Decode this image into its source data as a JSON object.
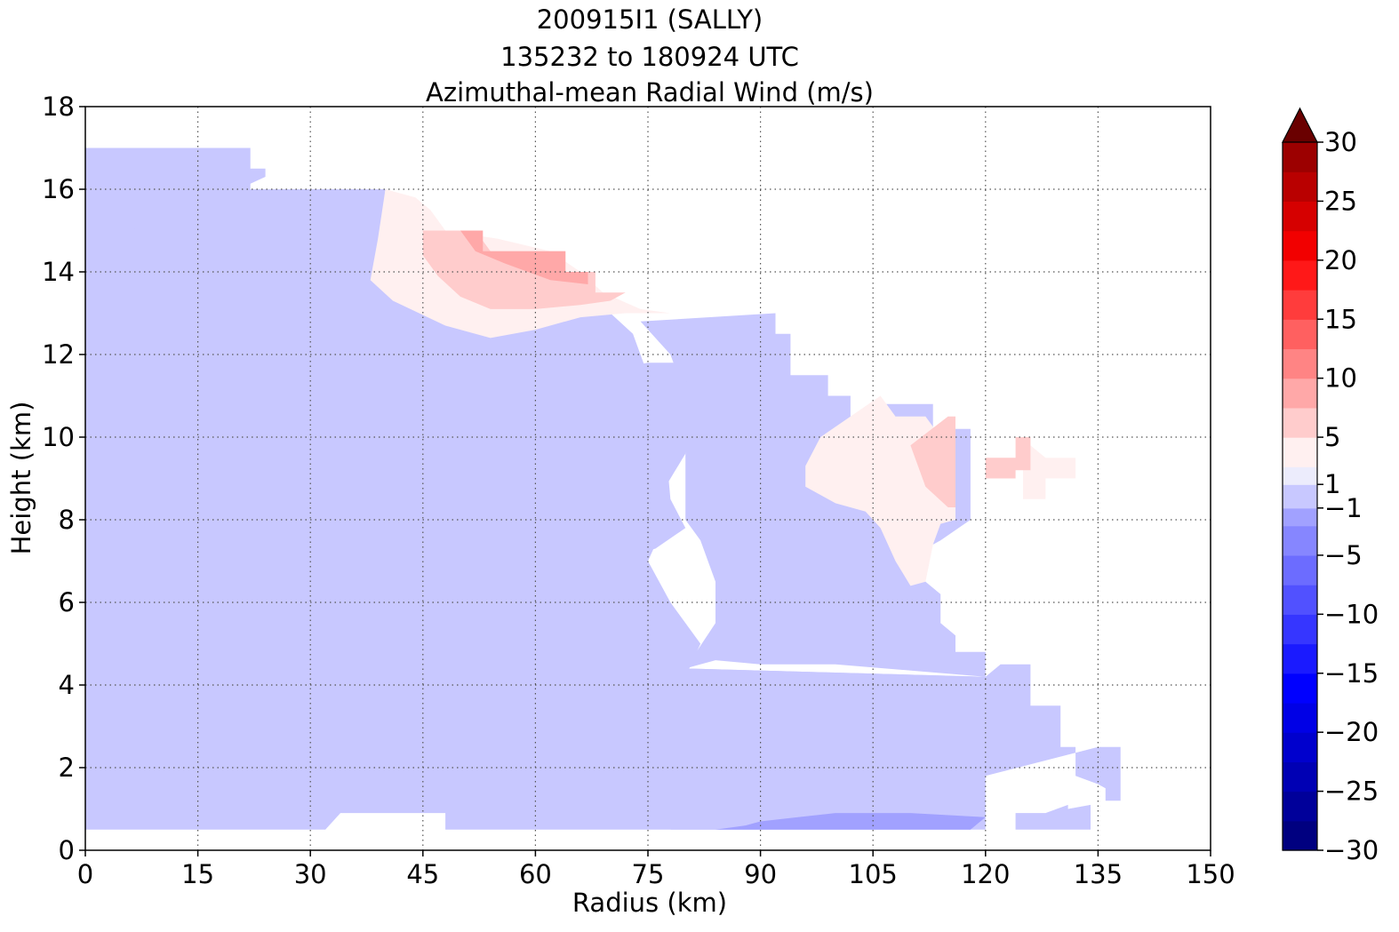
{
  "chart_data": {
    "type": "heatmap",
    "title_lines": [
      "200915I1 (SALLY)",
      "135232 to 180924 UTC",
      "Azimuthal-mean Radial Wind (m/s)"
    ],
    "xlabel": "Radius (km)",
    "ylabel": "Height (km)",
    "xlim": [
      0,
      150
    ],
    "ylim": [
      0,
      18
    ],
    "xticks": [
      0,
      15,
      30,
      45,
      60,
      75,
      90,
      105,
      120,
      135,
      150
    ],
    "yticks": [
      0,
      2,
      4,
      6,
      8,
      10,
      12,
      14,
      16,
      18
    ],
    "grid": true,
    "colorbar": {
      "ticks": [
        -30,
        -25,
        -20,
        -15,
        -10,
        -5,
        -1,
        1,
        5,
        10,
        15,
        20,
        25,
        30
      ],
      "tick_labels": [
        "−30",
        "−25",
        "−20",
        "−15",
        "−10",
        "−5",
        "−1",
        "1",
        "5",
        "10",
        "15",
        "20",
        "25",
        "30"
      ],
      "levels": [
        -30,
        -27.5,
        -25,
        -22.5,
        -20,
        -17.5,
        -15,
        -12.5,
        -10,
        -7.5,
        -5,
        -2.5,
        -1,
        1,
        2.5,
        5,
        7.5,
        10,
        12.5,
        15,
        17.5,
        20,
        22.5,
        25,
        27.5,
        30
      ],
      "colors": [
        "#000080",
        "#00009a",
        "#0000b4",
        "#0000cd",
        "#0000e6",
        "#0000ff",
        "#1a1aff",
        "#3636ff",
        "#5151ff",
        "#6c6cff",
        "#8686ff",
        "#a1a1ff",
        "#c8c8ff",
        "#ececfc",
        "#fff0f0",
        "#ffcccc",
        "#ffa8a8",
        "#ff8484",
        "#ff6060",
        "#ff3c3c",
        "#ff1818",
        "#f20000",
        "#d60000",
        "#b90000",
        "#9c0000",
        "#800000"
      ],
      "extend": "max",
      "extend_color": "#6a0000"
    },
    "regions": [
      {
        "value": 0.5,
        "points": [
          [
            0,
            0.5
          ],
          [
            32,
            0.5
          ],
          [
            34,
            0.9
          ],
          [
            48,
            0.9
          ],
          [
            48,
            0.5
          ],
          [
            120,
            0.5
          ],
          [
            120,
            4.2
          ],
          [
            80,
            4.4
          ],
          [
            75,
            4.9
          ],
          [
            70,
            4.9
          ],
          [
            68,
            5.5
          ],
          [
            67,
            6.5
          ],
          [
            70,
            7
          ],
          [
            76,
            7.3
          ],
          [
            80,
            7.8
          ],
          [
            78,
            8.5
          ],
          [
            77,
            10.5
          ],
          [
            73,
            12.5
          ],
          [
            70,
            13
          ],
          [
            60,
            13.1
          ],
          [
            50,
            13
          ],
          [
            42,
            13.5
          ],
          [
            39,
            14.3
          ],
          [
            40,
            16
          ],
          [
            22,
            16
          ],
          [
            22,
            17
          ],
          [
            0,
            17
          ]
        ]
      },
      {
        "value": 0.5,
        "points": [
          [
            80,
            4.4
          ],
          [
            120,
            4.2
          ],
          [
            122,
            4.5
          ],
          [
            126,
            4.5
          ],
          [
            126,
            3.5
          ],
          [
            130,
            3.5
          ],
          [
            130,
            2.5
          ],
          [
            132,
            2.5
          ],
          [
            132,
            1.8
          ],
          [
            135,
            1.6
          ],
          [
            136,
            1.5
          ],
          [
            136,
            1.2
          ],
          [
            138,
            1.2
          ],
          [
            138,
            2.5
          ],
          [
            135,
            2.5
          ],
          [
            120,
            1.8
          ],
          [
            110,
            1.6
          ],
          [
            100,
            1.5
          ],
          [
            90,
            1.3
          ],
          [
            82,
            1.2
          ],
          [
            80,
            1.2
          ]
        ]
      },
      {
        "value": 0.5,
        "points": [
          [
            74,
            12.8
          ],
          [
            92,
            13
          ],
          [
            92,
            12.5
          ],
          [
            94,
            12.5
          ],
          [
            94,
            11.5
          ],
          [
            99,
            11.5
          ],
          [
            99,
            11
          ],
          [
            102,
            11
          ],
          [
            102,
            10.5
          ],
          [
            105,
            10.5
          ],
          [
            105,
            10.8
          ],
          [
            113,
            10.8
          ],
          [
            113,
            10.2
          ],
          [
            118,
            10.2
          ],
          [
            118,
            8
          ],
          [
            114,
            7.5
          ],
          [
            112,
            7.3
          ],
          [
            112,
            6.5
          ],
          [
            114,
            6.2
          ],
          [
            114,
            5.5
          ],
          [
            116,
            5.2
          ],
          [
            116,
            4.8
          ],
          [
            120,
            4.8
          ],
          [
            120,
            4.2
          ],
          [
            100,
            4.5
          ],
          [
            90,
            4.5
          ],
          [
            84,
            4.6
          ],
          [
            80,
            4.4
          ],
          [
            84,
            5.5
          ],
          [
            84,
            6.5
          ],
          [
            82,
            7.5
          ],
          [
            80,
            8
          ],
          [
            80,
            11
          ],
          [
            78,
            12
          ]
        ]
      },
      {
        "value": -0.5,
        "points": [
          [
            0,
            5
          ],
          [
            5,
            5.2
          ],
          [
            7,
            6.4
          ],
          [
            15,
            6.5
          ],
          [
            16,
            7.5
          ],
          [
            14,
            8.5
          ],
          [
            8,
            9.2
          ],
          [
            0,
            9.5
          ]
        ]
      },
      {
        "value": -0.5,
        "points": [
          [
            0,
            2.8
          ],
          [
            4,
            2.9
          ],
          [
            9,
            3.3
          ],
          [
            9,
            3.7
          ],
          [
            5,
            4
          ],
          [
            1,
            4
          ]
        ]
      },
      {
        "value": -0.5,
        "points": [
          [
            27,
            8
          ],
          [
            28,
            8.2
          ],
          [
            35,
            8.5
          ],
          [
            40,
            8.6
          ],
          [
            45,
            8.5
          ],
          [
            47,
            8
          ],
          [
            46,
            4
          ],
          [
            50,
            3.2
          ],
          [
            52,
            3.5
          ],
          [
            56,
            3.6
          ],
          [
            58,
            3.5
          ],
          [
            64,
            3.6
          ],
          [
            66,
            3.8
          ],
          [
            70,
            3.9
          ],
          [
            75,
            4
          ],
          [
            80,
            4.2
          ],
          [
            82,
            5
          ],
          [
            78,
            6
          ],
          [
            75,
            7
          ],
          [
            78,
            8.2
          ],
          [
            77,
            8.7
          ],
          [
            80,
            9.6
          ],
          [
            81,
            11
          ],
          [
            79,
            11.8
          ],
          [
            75,
            11.8
          ],
          [
            72,
            11.7
          ],
          [
            66,
            11.5
          ],
          [
            62,
            11.3
          ],
          [
            58,
            10.8
          ],
          [
            54,
            10.9
          ],
          [
            46,
            11
          ],
          [
            40,
            11.1
          ],
          [
            34,
            10.8
          ],
          [
            29,
            10.2
          ],
          [
            27,
            9.2
          ]
        ]
      },
      {
        "value": -0.5,
        "points": [
          [
            10,
            16.5
          ],
          [
            21,
            16.5
          ],
          [
            24,
            16.5
          ],
          [
            24,
            16.3
          ],
          [
            18,
            15.8
          ],
          [
            15,
            15.2
          ],
          [
            11,
            14.7
          ],
          [
            7,
            14.7
          ],
          [
            6,
            15.5
          ],
          [
            7,
            16.2
          ]
        ]
      },
      {
        "value": -0.5,
        "points": [
          [
            78,
            0.5
          ],
          [
            124,
            0.5
          ],
          [
            124,
            0.9
          ],
          [
            128,
            0.9
          ],
          [
            131,
            1.1
          ],
          [
            131,
            1
          ],
          [
            134,
            1.1
          ],
          [
            134,
            0.5
          ],
          [
            118,
            0.5
          ],
          [
            110,
            0.9
          ],
          [
            100,
            0.9
          ],
          [
            90,
            0.7
          ],
          [
            85,
            0.6
          ],
          [
            80,
            0.6
          ]
        ]
      },
      {
        "value": -2.5,
        "points": [
          [
            84,
            0.5
          ],
          [
            118,
            0.5
          ],
          [
            120,
            0.8
          ],
          [
            110,
            0.9
          ],
          [
            100,
            0.9
          ],
          [
            95,
            0.8
          ],
          [
            90,
            0.7
          ],
          [
            88,
            0.6
          ]
        ]
      },
      {
        "value": 3,
        "points": [
          [
            38,
            13.8
          ],
          [
            41,
            13.3
          ],
          [
            48,
            12.7
          ],
          [
            54,
            12.4
          ],
          [
            60,
            12.6
          ],
          [
            66,
            12.9
          ],
          [
            72,
            13
          ],
          [
            78,
            13
          ],
          [
            74,
            13.1
          ],
          [
            69,
            13.5
          ],
          [
            66,
            14
          ],
          [
            62,
            14.5
          ],
          [
            55,
            14.8
          ],
          [
            48,
            15
          ],
          [
            46,
            15.5
          ],
          [
            44,
            15.8
          ],
          [
            40,
            16
          ],
          [
            39,
            14.8
          ]
        ]
      },
      {
        "value": 3,
        "points": [
          [
            96,
            9.3
          ],
          [
            98,
            10
          ],
          [
            102,
            10.5
          ],
          [
            106,
            11
          ],
          [
            108,
            10.5
          ],
          [
            112,
            10.5
          ],
          [
            114,
            10
          ],
          [
            116,
            10.5
          ],
          [
            116,
            8
          ],
          [
            114,
            7.9
          ],
          [
            113,
            7.4
          ],
          [
            112,
            6.5
          ],
          [
            110,
            6.4
          ],
          [
            108,
            7
          ],
          [
            106,
            7.8
          ],
          [
            104,
            8.2
          ],
          [
            100,
            8.4
          ],
          [
            96,
            8.8
          ]
        ]
      },
      {
        "value": 3,
        "points": [
          [
            125,
            8.5
          ],
          [
            128,
            8.5
          ],
          [
            128,
            9
          ],
          [
            132,
            9
          ],
          [
            132,
            9.5
          ],
          [
            128,
            9.5
          ],
          [
            126,
            9.8
          ],
          [
            125,
            9.2
          ]
        ]
      },
      {
        "value": 6,
        "points": [
          [
            45,
            15
          ],
          [
            52,
            15
          ],
          [
            54,
            14.5
          ],
          [
            64,
            14.5
          ],
          [
            64,
            14
          ],
          [
            68,
            14
          ],
          [
            68,
            13.5
          ],
          [
            72,
            13.5
          ],
          [
            70,
            13.3
          ],
          [
            66,
            13.2
          ],
          [
            60,
            13.1
          ],
          [
            54,
            13.1
          ],
          [
            50,
            13.4
          ],
          [
            47,
            13.9
          ],
          [
            45,
            14.4
          ]
        ]
      },
      {
        "value": 6,
        "points": [
          [
            110,
            9.8
          ],
          [
            115,
            10.5
          ],
          [
            116,
            10.5
          ],
          [
            116,
            8.3
          ],
          [
            115,
            8.3
          ],
          [
            112,
            8.8
          ]
        ]
      },
      {
        "value": 6,
        "points": [
          [
            120,
            9
          ],
          [
            124,
            9
          ],
          [
            124,
            9.2
          ],
          [
            126,
            9.2
          ],
          [
            126,
            10
          ],
          [
            124,
            10
          ],
          [
            124,
            9.5
          ],
          [
            120,
            9.5
          ]
        ]
      },
      {
        "value": 8.5,
        "points": [
          [
            50,
            15
          ],
          [
            53,
            15
          ],
          [
            53,
            14.5
          ],
          [
            64,
            14.5
          ],
          [
            64,
            14
          ],
          [
            67,
            14
          ],
          [
            67,
            13.7
          ],
          [
            62,
            13.8
          ],
          [
            56,
            14.2
          ],
          [
            52,
            14.5
          ]
        ]
      }
    ]
  }
}
